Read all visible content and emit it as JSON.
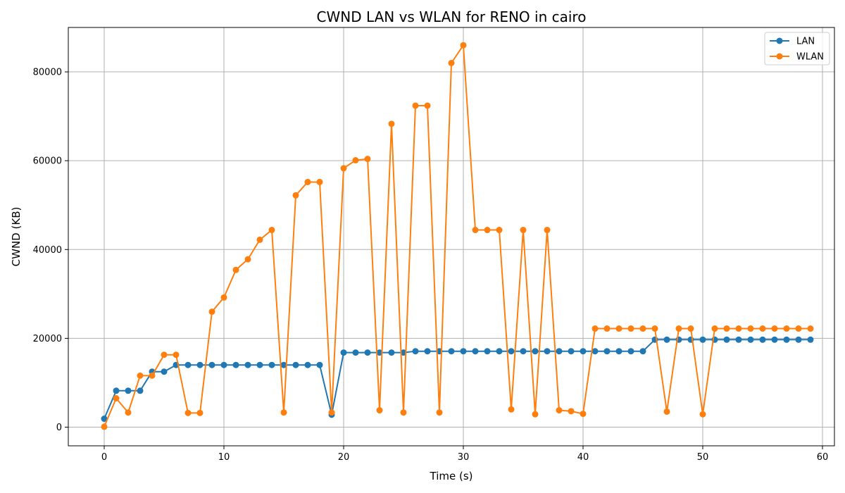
{
  "chart_data": {
    "type": "line",
    "title": "CWND LAN vs WLAN for RENO in cairo",
    "xlabel": "Time (s)",
    "ylabel": "CWND (KB)",
    "xlim": [
      -3,
      61
    ],
    "ylim": [
      -4200,
      90000
    ],
    "xticks": [
      0,
      10,
      20,
      30,
      40,
      50,
      60
    ],
    "yticks": [
      0,
      20000,
      40000,
      60000,
      80000
    ],
    "grid": true,
    "legend_position": "top-right",
    "series": [
      {
        "name": "LAN",
        "color": "#1f77b4",
        "x": [
          0,
          1,
          2,
          3,
          4,
          5,
          6,
          7,
          8,
          9,
          10,
          11,
          12,
          13,
          14,
          15,
          16,
          17,
          18,
          19,
          20,
          21,
          22,
          23,
          24,
          25,
          26,
          27,
          28,
          29,
          30,
          31,
          32,
          33,
          34,
          35,
          36,
          37,
          38,
          39,
          40,
          41,
          42,
          43,
          44,
          45,
          46,
          47,
          48,
          49,
          50,
          51,
          52,
          53,
          54,
          55,
          56,
          57,
          58,
          59
        ],
        "y": [
          1900,
          8200,
          8200,
          8200,
          12500,
          12500,
          14000,
          14000,
          14000,
          14000,
          14000,
          14000,
          14000,
          14000,
          14000,
          14000,
          14000,
          14000,
          14000,
          2800,
          16800,
          16800,
          16800,
          16800,
          16800,
          16800,
          17100,
          17100,
          17100,
          17100,
          17100,
          17100,
          17100,
          17100,
          17100,
          17100,
          17100,
          17100,
          17100,
          17100,
          17100,
          17100,
          17100,
          17100,
          17100,
          17100,
          19700,
          19700,
          19700,
          19700,
          19700,
          19700,
          19700,
          19700,
          19700,
          19700,
          19700,
          19700,
          19700,
          19700
        ]
      },
      {
        "name": "WLAN",
        "color": "#ff7f0e",
        "x": [
          0,
          1,
          2,
          3,
          4,
          5,
          6,
          7,
          8,
          9,
          10,
          11,
          12,
          13,
          14,
          15,
          16,
          17,
          18,
          19,
          20,
          21,
          22,
          23,
          24,
          25,
          26,
          27,
          28,
          29,
          30,
          31,
          32,
          33,
          34,
          35,
          36,
          37,
          38,
          39,
          40,
          41,
          42,
          43,
          44,
          45,
          46,
          47,
          48,
          49,
          50,
          51,
          52,
          53,
          54,
          55,
          56,
          57,
          58,
          59
        ],
        "y": [
          100,
          6500,
          3300,
          11600,
          11600,
          16300,
          16300,
          3200,
          3200,
          26000,
          29200,
          35400,
          37800,
          42200,
          44400,
          3300,
          52200,
          55200,
          55200,
          3300,
          58300,
          60100,
          60400,
          3800,
          68300,
          3300,
          72400,
          72400,
          3300,
          82000,
          86000,
          44400,
          44400,
          44400,
          4000,
          44400,
          2900,
          44400,
          3800,
          3600,
          3000,
          22200,
          22200,
          22200,
          22200,
          22200,
          22200,
          3500,
          22200,
          22200,
          2900,
          22200,
          22200,
          22200,
          22200,
          22200,
          22200,
          22200,
          22200,
          22200
        ]
      }
    ]
  }
}
